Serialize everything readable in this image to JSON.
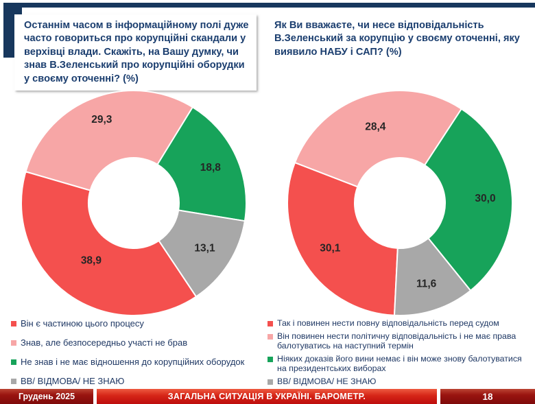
{
  "colors": {
    "navy": "#17375D",
    "title_text": "#1B3E6F",
    "slice_label": "#262626",
    "red": "#F4504E",
    "pink": "#F7A6A6",
    "green": "#17A35A",
    "gray": "#A8A8A8"
  },
  "footer": {
    "date": "Грудень 2025",
    "title": "ЗАГАЛЬНА СИТУАЦІЯ В УКРАЇНІ. БАРОМЕТР.",
    "page_number": "18"
  },
  "chart_data": [
    {
      "type": "pie",
      "subtype": "donut",
      "title": "Останнім часом в інформаційному полі дуже часто говориться про корупційні скандали у верхівці влади. Скажіть, на Вашу думку, чи знав В.Зеленський про корупційні оборудки у своєму оточенні? (%)",
      "labels": [
        "Він є частиною цього процесу",
        "Знав, але безпосередньо участі не брав",
        "Не знав і не має відношення до корупційних оборудок",
        "ВВ/ ВІДМОВА/ НЕ ЗНАЮ"
      ],
      "values": [
        38.9,
        29.3,
        18.8,
        13.1
      ],
      "display_values": [
        "38,9",
        "29,3",
        "18,8",
        "13,1"
      ],
      "color_keys": [
        "red",
        "pink",
        "green",
        "gray"
      ],
      "start_angle_deg": 146.3,
      "label_radius": [
        0.64,
        0.79,
        0.75,
        0.75
      ],
      "inner_radius_ratio": 0.4,
      "legend_position": "bottom"
    },
    {
      "type": "pie",
      "subtype": "donut",
      "title": "Як Ви вважаєте, чи несе відповідальність В.Зеленський за корупцію у своєму оточенні, яку виявило НАБУ і САП? (%)",
      "labels": [
        "Так і повинен нести повну відповідальність перед судом",
        "Він повинен нести політичну відповідальність і не має права балотуватись на наступний термін",
        "Ніяких доказів його вини немає і він може знову балотуватися на президентських виборах",
        "ВВ/ ВІДМОВА/ НЕ ЗНАЮ"
      ],
      "values": [
        30.1,
        28.4,
        30.0,
        11.6
      ],
      "display_values": [
        "30,1",
        "28,4",
        "30,0",
        "11,6"
      ],
      "color_keys": [
        "red",
        "pink",
        "green",
        "gray"
      ],
      "start_angle_deg": 182.8,
      "label_radius": [
        0.74,
        0.71,
        0.76,
        0.76
      ],
      "inner_radius_ratio": 0.4,
      "legend_position": "bottom"
    }
  ]
}
